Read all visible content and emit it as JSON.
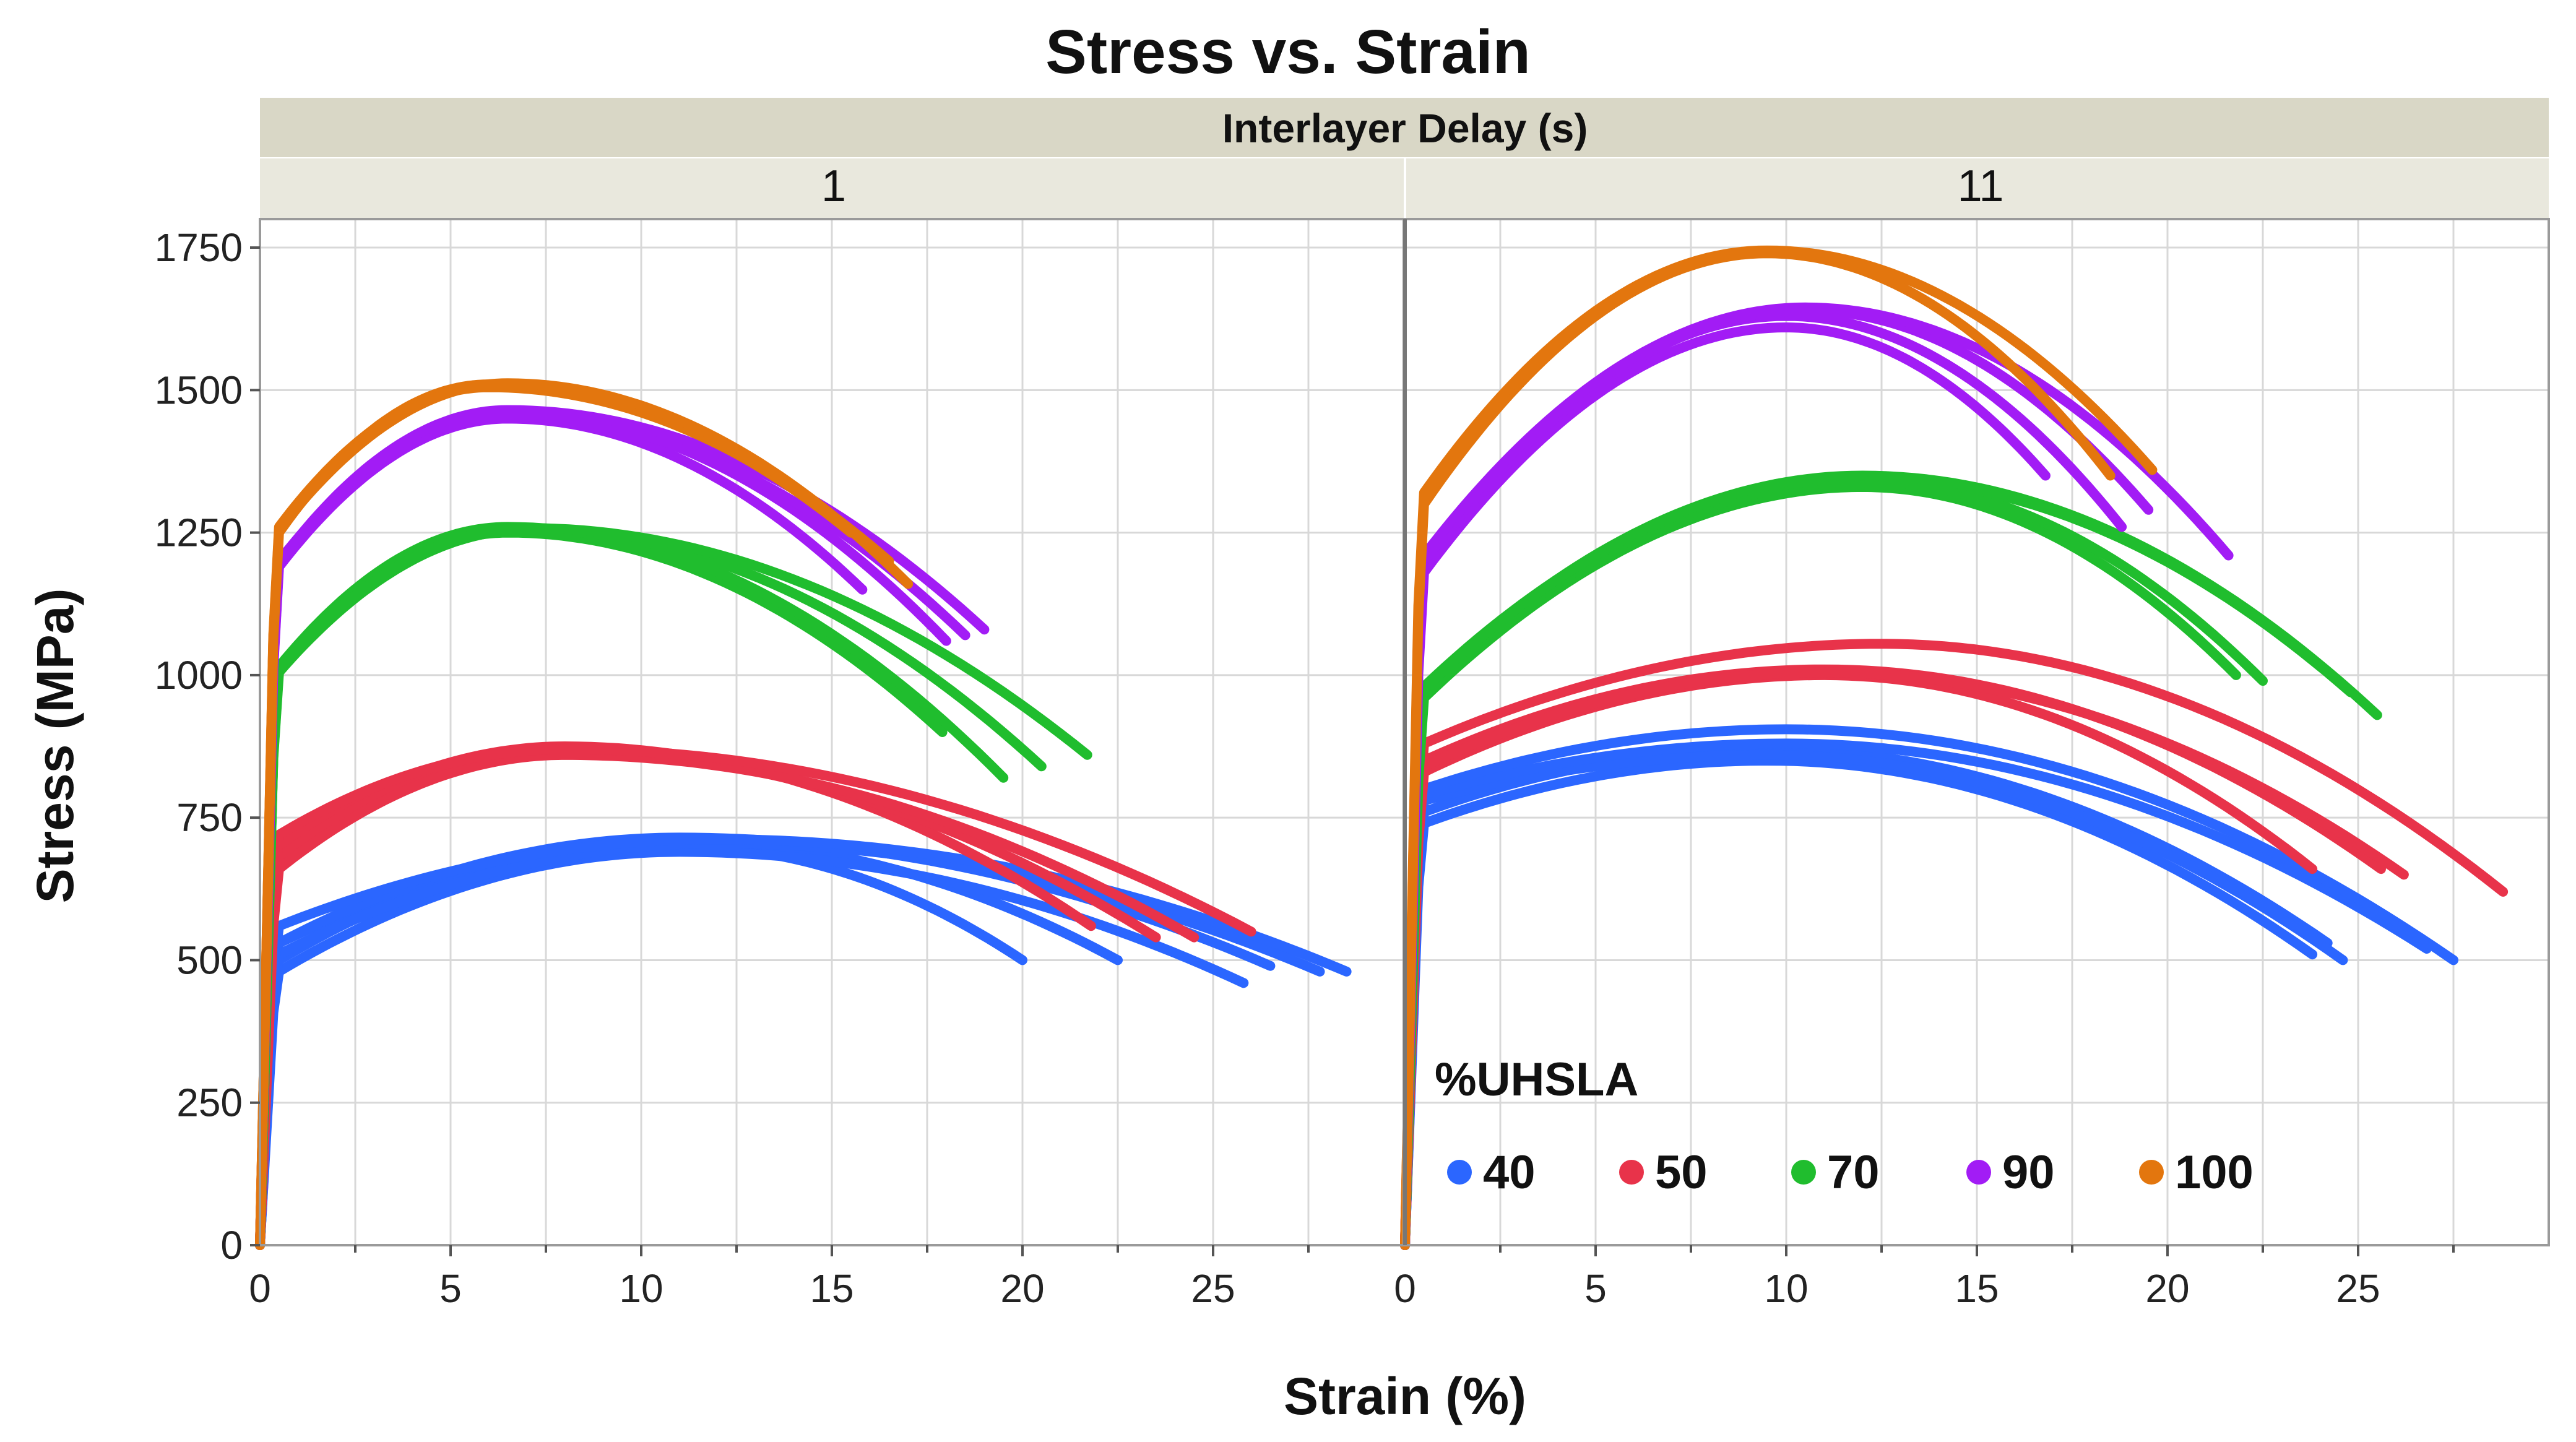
{
  "chart_data": {
    "type": "line",
    "title": "Stress vs. Strain",
    "xlabel": "Strain (%)",
    "ylabel": "Stress (MPa)",
    "facet_label": "Interlayer Delay (s)",
    "xlim": [
      0,
      30
    ],
    "ylim": [
      0,
      1800
    ],
    "x_ticks": [
      "0",
      "5",
      "10",
      "15",
      "20",
      "25"
    ],
    "y_ticks": [
      "0",
      "250",
      "500",
      "750",
      "1000",
      "1250",
      "1500",
      "1750"
    ],
    "legend": {
      "title": "%UHSLA",
      "position": "bottom-right",
      "entries": [
        {
          "label": "40",
          "color": "#2b66ff"
        },
        {
          "label": "50",
          "color": "#e8334a"
        },
        {
          "label": "70",
          "color": "#20bd2e"
        },
        {
          "label": "90",
          "color": "#a21cf5"
        },
        {
          "label": "100",
          "color": "#e3760e"
        }
      ]
    },
    "panels": [
      {
        "label": "1",
        "series": [
          {
            "name": "40",
            "curves": [
              {
                "ys": 530,
                "peak": 700,
                "xpeak": 11,
                "xend": 20,
                "yend": 500
              },
              {
                "ys": 500,
                "peak": 710,
                "xpeak": 11,
                "xend": 22.5,
                "yend": 500
              },
              {
                "ys": 480,
                "peak": 690,
                "xpeak": 11,
                "xend": 25.8,
                "yend": 460
              },
              {
                "ys": 530,
                "peak": 715,
                "xpeak": 11,
                "xend": 26.5,
                "yend": 490
              },
              {
                "ys": 510,
                "peak": 705,
                "xpeak": 12,
                "xend": 27.8,
                "yend": 480
              },
              {
                "ys": 560,
                "peak": 712,
                "xpeak": 12,
                "xend": 28.5,
                "yend": 480
              }
            ]
          },
          {
            "name": "50",
            "curves": [
              {
                "ys": 700,
                "peak": 875,
                "xpeak": 8,
                "xend": 21.8,
                "yend": 560
              },
              {
                "ys": 680,
                "peak": 865,
                "xpeak": 8,
                "xend": 23.5,
                "yend": 540
              },
              {
                "ys": 660,
                "peak": 860,
                "xpeak": 8,
                "xend": 24.5,
                "yend": 540
              },
              {
                "ys": 720,
                "peak": 870,
                "xpeak": 8,
                "xend": 26,
                "yend": 550
              }
            ]
          },
          {
            "name": "70",
            "curves": [
              {
                "ys": 1010,
                "peak": 1250,
                "xpeak": 6.5,
                "xend": 17.9,
                "yend": 900
              },
              {
                "ys": 1015,
                "peak": 1260,
                "xpeak": 6.5,
                "xend": 19.5,
                "yend": 820
              },
              {
                "ys": 1005,
                "peak": 1255,
                "xpeak": 7,
                "xend": 20.5,
                "yend": 840
              },
              {
                "ys": 1012,
                "peak": 1258,
                "xpeak": 7,
                "xend": 21.7,
                "yend": 860
              }
            ]
          },
          {
            "name": "90",
            "curves": [
              {
                "ys": 1190,
                "peak": 1450,
                "xpeak": 6.5,
                "xend": 15.8,
                "yend": 1150
              },
              {
                "ys": 1195,
                "peak": 1460,
                "xpeak": 6.5,
                "xend": 18,
                "yend": 1060
              },
              {
                "ys": 1200,
                "peak": 1455,
                "xpeak": 6.5,
                "xend": 18.5,
                "yend": 1070
              },
              {
                "ys": 1198,
                "peak": 1465,
                "xpeak": 6.5,
                "xend": 19,
                "yend": 1080
              }
            ]
          },
          {
            "name": "100",
            "curves": [
              {
                "ys": 1250,
                "peak": 1510,
                "xpeak": 6,
                "xend": 15.5,
                "yend": 1250
              },
              {
                "ys": 1260,
                "peak": 1505,
                "xpeak": 6,
                "xend": 16.5,
                "yend": 1200
              },
              {
                "ys": 1255,
                "peak": 1512,
                "xpeak": 6.5,
                "xend": 17,
                "yend": 1160
              }
            ]
          }
        ]
      },
      {
        "label": "11",
        "series": [
          {
            "name": "40",
            "curves": [
              {
                "ys": 740,
                "peak": 850,
                "xpeak": 9.5,
                "xend": 23.8,
                "yend": 510
              },
              {
                "ys": 760,
                "peak": 870,
                "xpeak": 9.5,
                "xend": 24.2,
                "yend": 530
              },
              {
                "ys": 780,
                "peak": 860,
                "xpeak": 9.5,
                "xend": 24.6,
                "yend": 500
              },
              {
                "ys": 790,
                "peak": 880,
                "xpeak": 10,
                "xend": 26.8,
                "yend": 520
              },
              {
                "ys": 800,
                "peak": 905,
                "xpeak": 10,
                "xend": 27.5,
                "yend": 500
              }
            ]
          },
          {
            "name": "50",
            "curves": [
              {
                "ys": 830,
                "peak": 1000,
                "xpeak": 11,
                "xend": 23.8,
                "yend": 660
              },
              {
                "ys": 850,
                "peak": 1010,
                "xpeak": 11,
                "xend": 25.6,
                "yend": 660
              },
              {
                "ys": 840,
                "peak": 1005,
                "xpeak": 11,
                "xend": 26.2,
                "yend": 650
              },
              {
                "ys": 880,
                "peak": 1055,
                "xpeak": 12.5,
                "xend": 28.8,
                "yend": 620
              }
            ]
          },
          {
            "name": "70",
            "curves": [
              {
                "ys": 960,
                "peak": 1330,
                "xpeak": 12,
                "xend": 21.8,
                "yend": 1000
              },
              {
                "ys": 970,
                "peak": 1340,
                "xpeak": 12,
                "xend": 22.5,
                "yend": 990
              },
              {
                "ys": 980,
                "peak": 1345,
                "xpeak": 12,
                "xend": 24.8,
                "yend": 970
              },
              {
                "ys": 975,
                "peak": 1350,
                "xpeak": 12,
                "xend": 25.5,
                "yend": 930
              }
            ]
          },
          {
            "name": "90",
            "curves": [
              {
                "ys": 1180,
                "peak": 1610,
                "xpeak": 10,
                "xend": 16.8,
                "yend": 1350
              },
              {
                "ys": 1190,
                "peak": 1630,
                "xpeak": 10,
                "xend": 18.8,
                "yend": 1260
              },
              {
                "ys": 1200,
                "peak": 1640,
                "xpeak": 10.5,
                "xend": 19.5,
                "yend": 1290
              },
              {
                "ys": 1210,
                "peak": 1645,
                "xpeak": 10.5,
                "xend": 21.6,
                "yend": 1210
              }
            ]
          },
          {
            "name": "100",
            "curves": [
              {
                "ys": 1300,
                "peak": 1740,
                "xpeak": 9.5,
                "xend": 18.5,
                "yend": 1350
              },
              {
                "ys": 1320,
                "peak": 1745,
                "xpeak": 9.5,
                "xend": 19.6,
                "yend": 1360
              }
            ]
          }
        ]
      }
    ]
  }
}
